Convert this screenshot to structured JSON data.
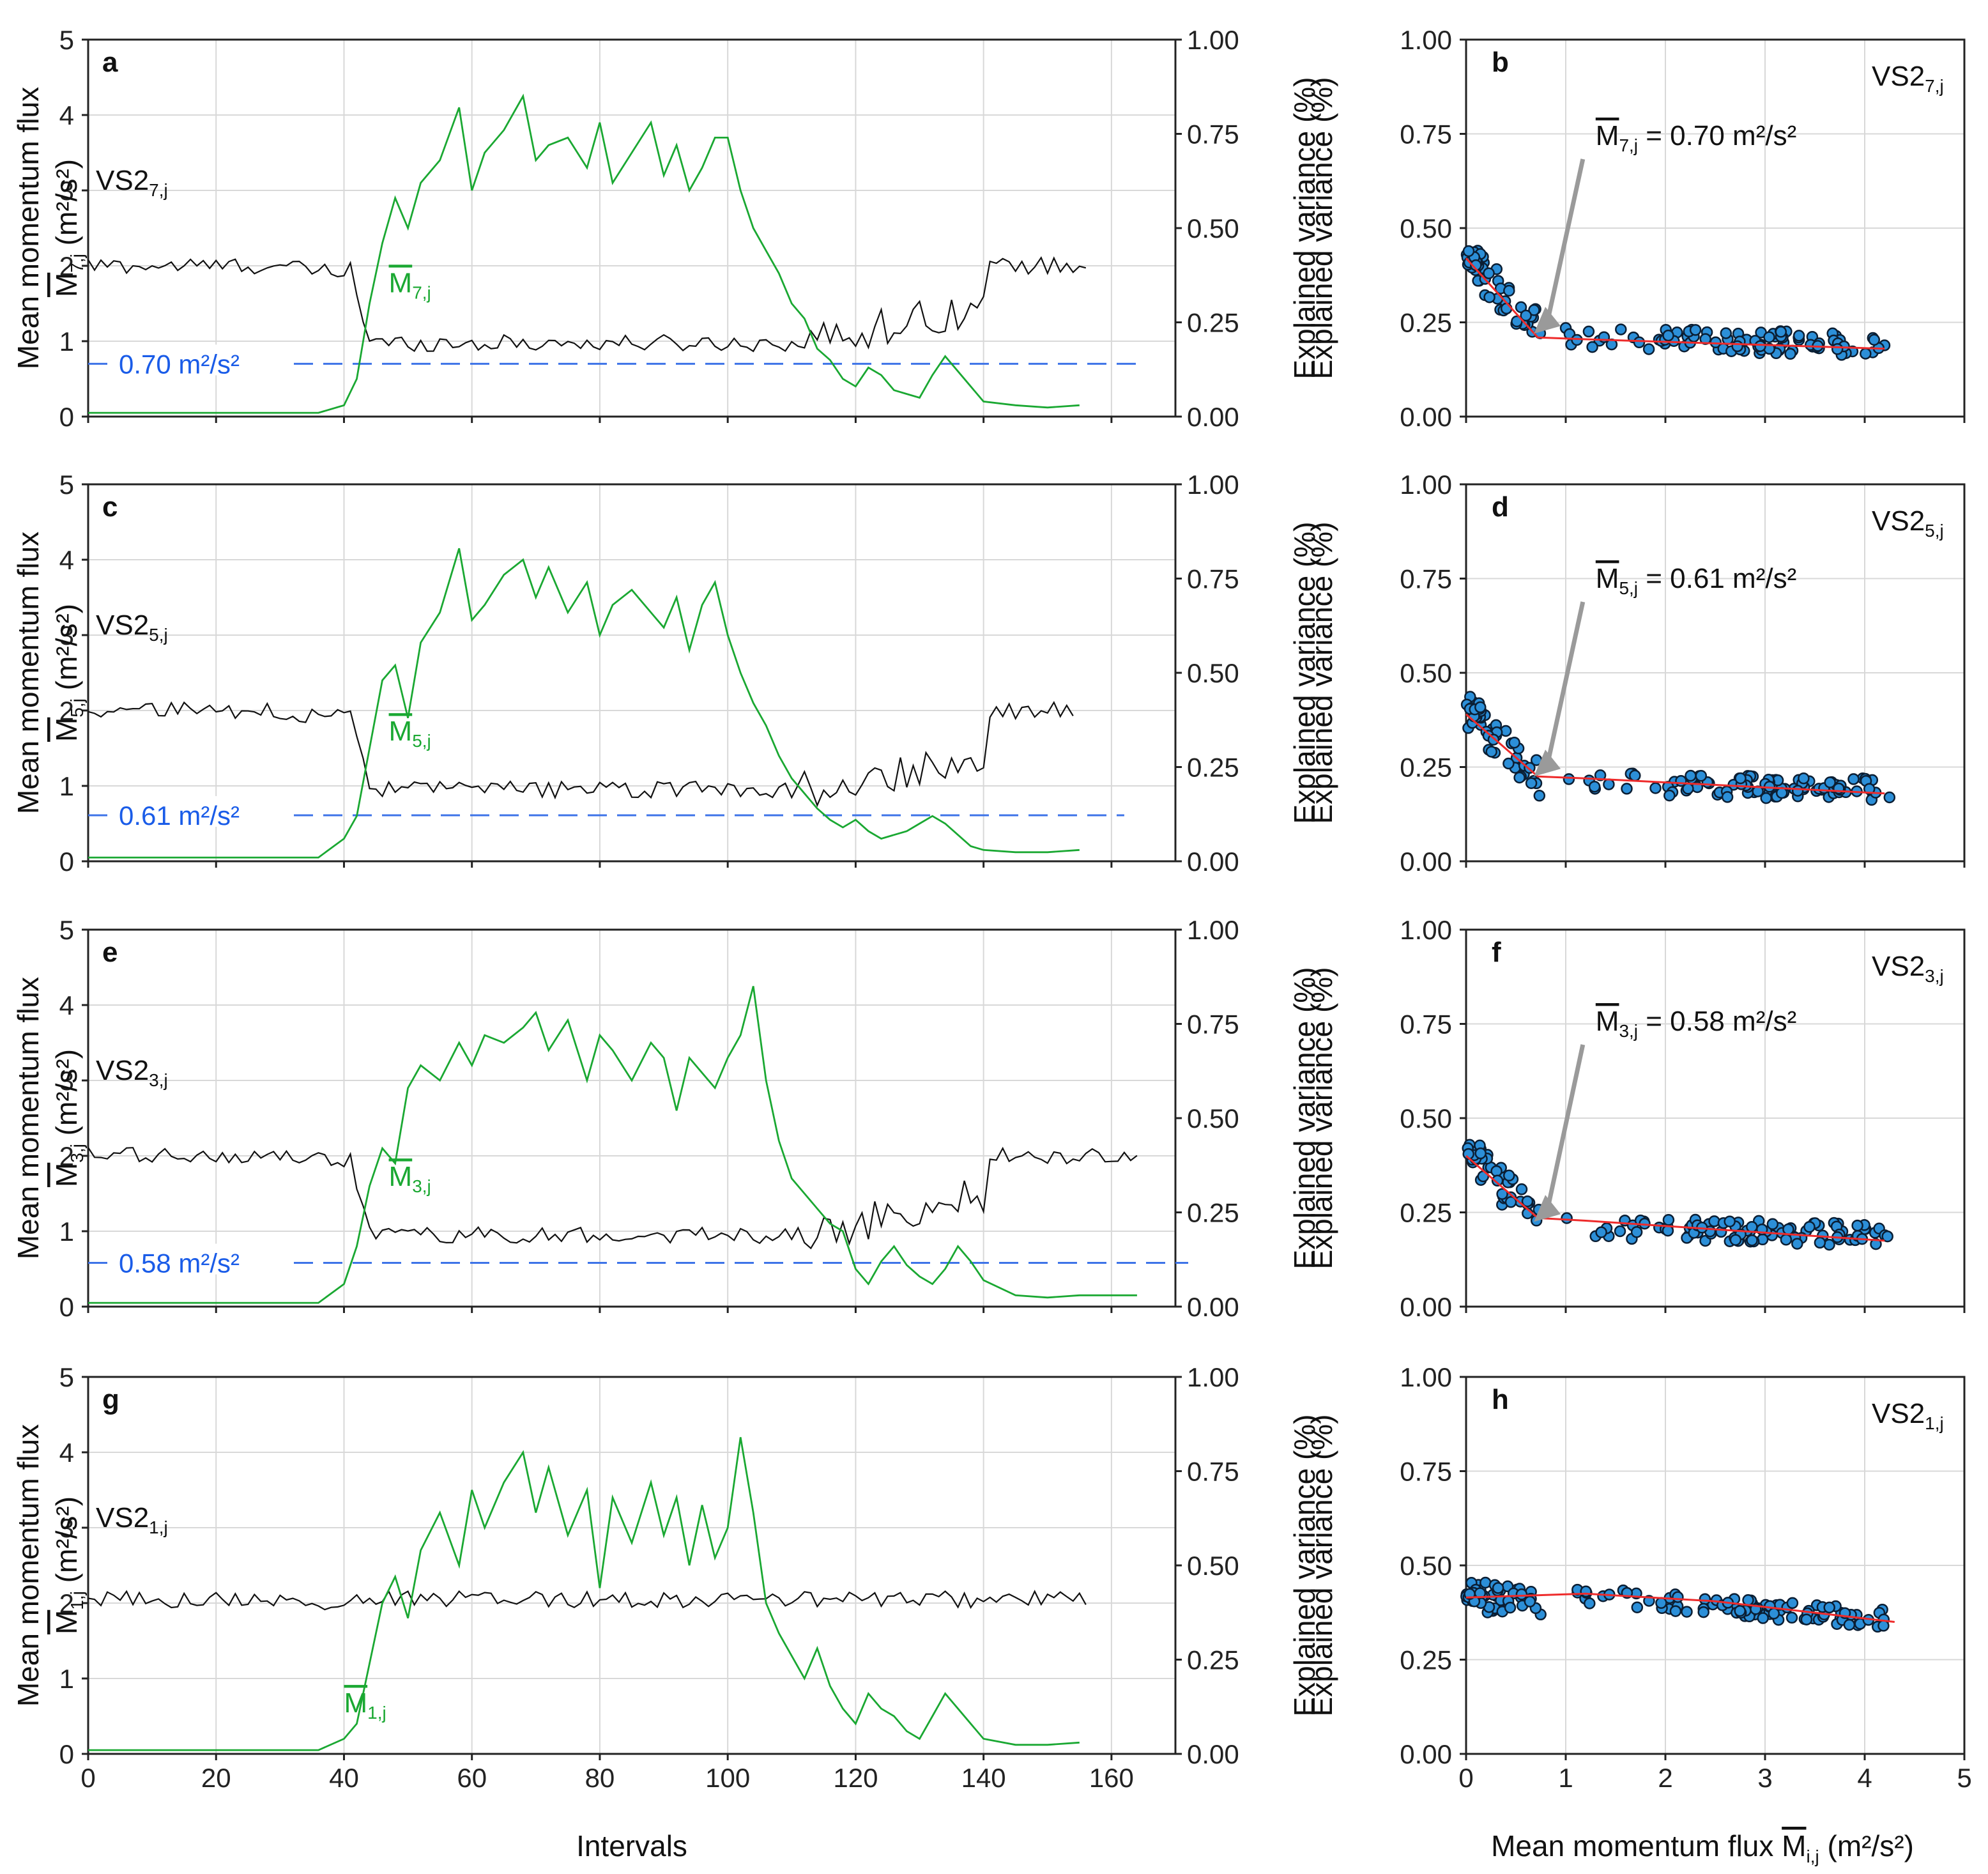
{
  "chart_data": {
    "type": "line",
    "layout": "4x2 grid",
    "colors": {
      "vs2_line": "#111111",
      "mean_flux_line": "#1aa832",
      "threshold_line": "#3d73e8",
      "threshold_text": "#1a5ce8",
      "scatter_fill": "#2c8fd8",
      "scatter_edge": "#0b1e33",
      "fit_line": "#ee2b2b",
      "grid": "#d8d8d8"
    },
    "shared": {
      "left_xlabel": "Intervals",
      "left_xticks": [
        0,
        20,
        40,
        60,
        80,
        100,
        120,
        140,
        160
      ],
      "left_xlim": [
        0,
        170
      ],
      "left_ylabel_line1": "Mean momentum flux",
      "left_ylabel_prefix": "M",
      "left_ylabel_suffix": "(m²/s²)",
      "left_yticks": [
        0,
        1,
        2,
        3,
        4,
        5
      ],
      "left_ylim": [
        0,
        5
      ],
      "right_yticks": [
        "0.00",
        "0.25",
        "0.50",
        "0.75",
        "1.00"
      ],
      "right_ylim": [
        0,
        1
      ],
      "right_ylabel": "Explained variance (%)",
      "scatter_xlabel_prefix": "Mean momentum flux M",
      "scatter_xlabel_sub": "i,j",
      "scatter_xlabel_suffix": "(m²/s²)",
      "scatter_xticks": [
        0,
        1,
        2,
        3,
        4,
        5
      ],
      "scatter_xlim": [
        0,
        5
      ],
      "scatter_yticks": [
        "0.00",
        "0.25",
        "0.50",
        "0.75",
        "1.00"
      ],
      "scatter_ylabel": "Explained variance (%)",
      "unit": "m²/s²"
    },
    "rows": [
      {
        "ts_letter": "a",
        "sc_letter": "b",
        "index": "7",
        "vs2_label": "VS2",
        "sub": "7,j",
        "m_label": "M",
        "n_points": 156,
        "vs2_base": 0.4,
        "vs2_event": 0.195,
        "vs2_rise": 0.3,
        "threshold": 0.7,
        "threshold_label": "0.70 m²/s²",
        "annotation_value": "= 0.70 m²/s²",
        "flux_series": [
          [
            0,
            0.05
          ],
          [
            10,
            0.05
          ],
          [
            20,
            0.05
          ],
          [
            30,
            0.05
          ],
          [
            36,
            0.05
          ],
          [
            40,
            0.15
          ],
          [
            42,
            0.5
          ],
          [
            44,
            1.5
          ],
          [
            46,
            2.3
          ],
          [
            48,
            2.9
          ],
          [
            50,
            2.5
          ],
          [
            52,
            3.1
          ],
          [
            55,
            3.4
          ],
          [
            58,
            4.1
          ],
          [
            60,
            3.0
          ],
          [
            62,
            3.5
          ],
          [
            65,
            3.8
          ],
          [
            68,
            4.25
          ],
          [
            70,
            3.4
          ],
          [
            72,
            3.6
          ],
          [
            75,
            3.7
          ],
          [
            78,
            3.3
          ],
          [
            80,
            3.9
          ],
          [
            82,
            3.1
          ],
          [
            85,
            3.5
          ],
          [
            88,
            3.9
          ],
          [
            90,
            3.2
          ],
          [
            92,
            3.6
          ],
          [
            94,
            3.0
          ],
          [
            96,
            3.3
          ],
          [
            98,
            3.7
          ],
          [
            100,
            3.7
          ],
          [
            102,
            3.0
          ],
          [
            104,
            2.5
          ],
          [
            106,
            2.2
          ],
          [
            108,
            1.9
          ],
          [
            110,
            1.5
          ],
          [
            112,
            1.3
          ],
          [
            114,
            0.9
          ],
          [
            116,
            0.75
          ],
          [
            118,
            0.5
          ],
          [
            120,
            0.4
          ],
          [
            122,
            0.65
          ],
          [
            124,
            0.55
          ],
          [
            126,
            0.35
          ],
          [
            128,
            0.3
          ],
          [
            130,
            0.25
          ],
          [
            132,
            0.55
          ],
          [
            134,
            0.8
          ],
          [
            136,
            0.6
          ],
          [
            138,
            0.4
          ],
          [
            140,
            0.2
          ],
          [
            145,
            0.15
          ],
          [
            150,
            0.12
          ],
          [
            155,
            0.15
          ]
        ],
        "scatter_fit": [
          [
            0,
            0.42
          ],
          [
            0.72,
            0.21
          ],
          [
            1.2,
            0.205
          ],
          [
            4.2,
            0.18
          ]
        ],
        "scatter_stats": {
          "low_start": 0.42,
          "low_end": 0.23,
          "flat_start": 0.21,
          "flat_end": 0.19,
          "xmax": 4.2,
          "spread": 0.03
        }
      },
      {
        "ts_letter": "c",
        "sc_letter": "d",
        "index": "5",
        "vs2_label": "VS2",
        "sub": "5,j",
        "m_label": "M",
        "n_points": 154,
        "vs2_base": 0.4,
        "vs2_event": 0.19,
        "vs2_rise": 0.28,
        "threshold": 0.61,
        "threshold_label": "0.61 m²/s²",
        "annotation_value": "= 0.61 m²/s²",
        "flux_series": [
          [
            0,
            0.05
          ],
          [
            10,
            0.05
          ],
          [
            20,
            0.05
          ],
          [
            30,
            0.05
          ],
          [
            36,
            0.05
          ],
          [
            40,
            0.3
          ],
          [
            42,
            0.6
          ],
          [
            44,
            1.5
          ],
          [
            46,
            2.4
          ],
          [
            48,
            2.6
          ],
          [
            50,
            1.9
          ],
          [
            52,
            2.9
          ],
          [
            55,
            3.3
          ],
          [
            58,
            4.15
          ],
          [
            60,
            3.2
          ],
          [
            62,
            3.4
          ],
          [
            65,
            3.8
          ],
          [
            68,
            4.0
          ],
          [
            70,
            3.5
          ],
          [
            72,
            3.9
          ],
          [
            75,
            3.3
          ],
          [
            78,
            3.7
          ],
          [
            80,
            3.0
          ],
          [
            82,
            3.4
          ],
          [
            85,
            3.6
          ],
          [
            88,
            3.3
          ],
          [
            90,
            3.1
          ],
          [
            92,
            3.5
          ],
          [
            94,
            2.8
          ],
          [
            96,
            3.4
          ],
          [
            98,
            3.7
          ],
          [
            100,
            3.0
          ],
          [
            102,
            2.5
          ],
          [
            104,
            2.1
          ],
          [
            106,
            1.8
          ],
          [
            108,
            1.4
          ],
          [
            110,
            1.1
          ],
          [
            112,
            0.9
          ],
          [
            114,
            0.7
          ],
          [
            116,
            0.55
          ],
          [
            118,
            0.45
          ],
          [
            120,
            0.55
          ],
          [
            122,
            0.4
          ],
          [
            124,
            0.3
          ],
          [
            126,
            0.35
          ],
          [
            128,
            0.4
          ],
          [
            130,
            0.5
          ],
          [
            132,
            0.6
          ],
          [
            134,
            0.5
          ],
          [
            136,
            0.35
          ],
          [
            138,
            0.2
          ],
          [
            140,
            0.15
          ],
          [
            145,
            0.12
          ],
          [
            150,
            0.12
          ],
          [
            155,
            0.15
          ]
        ],
        "scatter_fit": [
          [
            0,
            0.39
          ],
          [
            0.72,
            0.225
          ],
          [
            1.2,
            0.22
          ],
          [
            4.2,
            0.18
          ]
        ],
        "scatter_stats": {
          "low_start": 0.4,
          "low_end": 0.22,
          "flat_start": 0.21,
          "flat_end": 0.19,
          "xmax": 4.2,
          "spread": 0.03
        }
      },
      {
        "ts_letter": "e",
        "sc_letter": "f",
        "index": "3",
        "vs2_label": "VS2",
        "sub": "3,j",
        "m_label": "M",
        "n_points": 164,
        "vs2_base": 0.4,
        "vs2_event": 0.19,
        "vs2_rise": 0.3,
        "threshold": 0.58,
        "threshold_label": "0.58 m²/s²",
        "annotation_value": "= 0.58 m²/s²",
        "flux_series": [
          [
            0,
            0.05
          ],
          [
            10,
            0.05
          ],
          [
            20,
            0.05
          ],
          [
            30,
            0.05
          ],
          [
            36,
            0.05
          ],
          [
            40,
            0.3
          ],
          [
            42,
            0.8
          ],
          [
            44,
            1.6
          ],
          [
            46,
            2.1
          ],
          [
            48,
            1.9
          ],
          [
            50,
            2.9
          ],
          [
            52,
            3.2
          ],
          [
            55,
            3.0
          ],
          [
            58,
            3.5
          ],
          [
            60,
            3.2
          ],
          [
            62,
            3.6
          ],
          [
            65,
            3.5
          ],
          [
            68,
            3.7
          ],
          [
            70,
            3.9
          ],
          [
            72,
            3.4
          ],
          [
            75,
            3.8
          ],
          [
            78,
            3.0
          ],
          [
            80,
            3.6
          ],
          [
            82,
            3.4
          ],
          [
            85,
            3.0
          ],
          [
            88,
            3.5
          ],
          [
            90,
            3.3
          ],
          [
            92,
            2.6
          ],
          [
            94,
            3.3
          ],
          [
            96,
            3.1
          ],
          [
            98,
            2.9
          ],
          [
            100,
            3.3
          ],
          [
            102,
            3.6
          ],
          [
            104,
            4.25
          ],
          [
            106,
            3.0
          ],
          [
            108,
            2.2
          ],
          [
            110,
            1.7
          ],
          [
            112,
            1.5
          ],
          [
            114,
            1.3
          ],
          [
            116,
            1.1
          ],
          [
            118,
            1.0
          ],
          [
            120,
            0.5
          ],
          [
            122,
            0.3
          ],
          [
            124,
            0.6
          ],
          [
            126,
            0.8
          ],
          [
            128,
            0.55
          ],
          [
            130,
            0.4
          ],
          [
            132,
            0.3
          ],
          [
            134,
            0.5
          ],
          [
            136,
            0.8
          ],
          [
            138,
            0.6
          ],
          [
            140,
            0.35
          ],
          [
            145,
            0.15
          ],
          [
            150,
            0.12
          ],
          [
            155,
            0.15
          ],
          [
            160,
            0.15
          ],
          [
            164,
            0.15
          ]
        ],
        "scatter_fit": [
          [
            0,
            0.4
          ],
          [
            0.72,
            0.235
          ],
          [
            1.2,
            0.228
          ],
          [
            4.2,
            0.175
          ]
        ],
        "scatter_stats": {
          "low_start": 0.41,
          "low_end": 0.22,
          "flat_start": 0.21,
          "flat_end": 0.19,
          "xmax": 4.2,
          "spread": 0.03
        }
      },
      {
        "ts_letter": "g",
        "sc_letter": "h",
        "index": "1",
        "vs2_label": "VS2",
        "sub": "1,j",
        "m_label": "M",
        "n_points": 156,
        "vs2_base": 0.41,
        "vs2_event": 0.41,
        "vs2_rise": 0.41,
        "threshold": null,
        "threshold_label": "",
        "annotation_value": "",
        "flux_series": [
          [
            0,
            0.05
          ],
          [
            10,
            0.05
          ],
          [
            20,
            0.05
          ],
          [
            30,
            0.05
          ],
          [
            36,
            0.05
          ],
          [
            40,
            0.2
          ],
          [
            42,
            0.4
          ],
          [
            44,
            1.2
          ],
          [
            46,
            2.0
          ],
          [
            48,
            2.35
          ],
          [
            50,
            1.8
          ],
          [
            52,
            2.7
          ],
          [
            55,
            3.2
          ],
          [
            58,
            2.5
          ],
          [
            60,
            3.5
          ],
          [
            62,
            3.0
          ],
          [
            65,
            3.6
          ],
          [
            68,
            4.0
          ],
          [
            70,
            3.2
          ],
          [
            72,
            3.8
          ],
          [
            75,
            2.9
          ],
          [
            78,
            3.5
          ],
          [
            80,
            2.2
          ],
          [
            82,
            3.4
          ],
          [
            85,
            2.8
          ],
          [
            88,
            3.6
          ],
          [
            90,
            2.9
          ],
          [
            92,
            3.4
          ],
          [
            94,
            2.5
          ],
          [
            96,
            3.3
          ],
          [
            98,
            2.6
          ],
          [
            100,
            3.0
          ],
          [
            102,
            4.2
          ],
          [
            104,
            3.2
          ],
          [
            106,
            2.0
          ],
          [
            108,
            1.6
          ],
          [
            110,
            1.3
          ],
          [
            112,
            1.0
          ],
          [
            114,
            1.4
          ],
          [
            116,
            0.9
          ],
          [
            118,
            0.6
          ],
          [
            120,
            0.4
          ],
          [
            122,
            0.8
          ],
          [
            124,
            0.6
          ],
          [
            126,
            0.5
          ],
          [
            128,
            0.3
          ],
          [
            130,
            0.2
          ],
          [
            132,
            0.5
          ],
          [
            134,
            0.8
          ],
          [
            136,
            0.6
          ],
          [
            138,
            0.4
          ],
          [
            140,
            0.2
          ],
          [
            145,
            0.12
          ],
          [
            150,
            0.12
          ],
          [
            155,
            0.15
          ]
        ],
        "scatter_fit": [
          [
            0,
            0.415
          ],
          [
            1.2,
            0.425
          ],
          [
            2.5,
            0.405
          ],
          [
            4.3,
            0.35
          ]
        ],
        "scatter_stats": {
          "low_start": 0.41,
          "low_end": 0.41,
          "flat_start": 0.42,
          "flat_end": 0.36,
          "xmax": 4.2,
          "spread": 0.025
        }
      }
    ]
  }
}
